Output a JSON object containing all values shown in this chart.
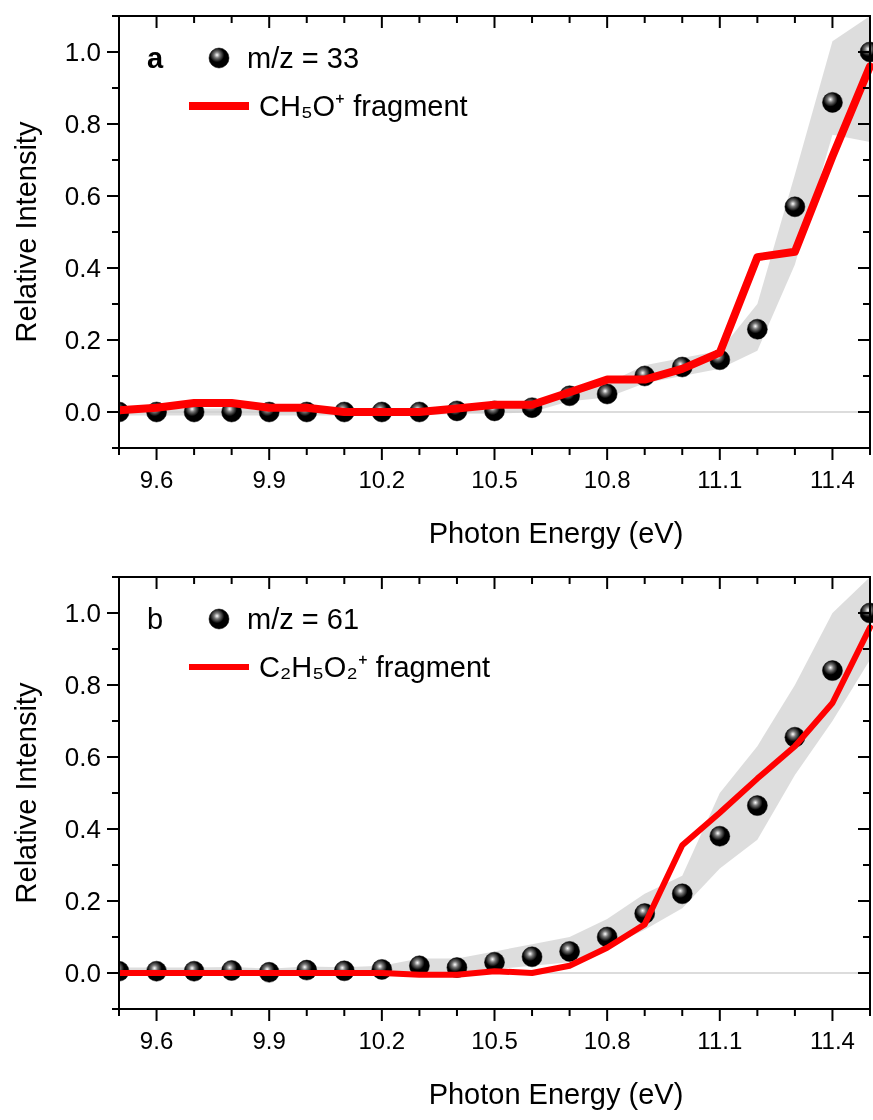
{
  "chart_data": [
    {
      "type": "scatter",
      "annotations": [
        "a"
      ],
      "xlabel": "Photon Energy (eV)",
      "ylabel": "Relative Intensity",
      "xlim": [
        9.5,
        11.5
      ],
      "ylim": [
        -0.1,
        1.1
      ],
      "xticks": [
        {
          "value": 9.5,
          "label": null
        },
        9.6,
        {
          "value": 9.7,
          "label": null
        },
        {
          "value": 9.8,
          "label": null
        },
        9.9,
        {
          "value": 10.0,
          "label": null
        },
        {
          "value": 10.1,
          "label": null
        },
        10.2,
        {
          "value": 10.3,
          "label": null
        },
        {
          "value": 10.4,
          "label": null
        },
        10.5,
        {
          "value": 10.6,
          "label": null
        },
        {
          "value": 10.7,
          "label": null
        },
        10.8,
        {
          "value": 10.9,
          "label": null
        },
        {
          "value": 11.0,
          "label": null
        },
        11.1,
        {
          "value": 11.2,
          "label": null
        },
        {
          "value": 11.3,
          "label": null
        },
        11.4,
        {
          "value": 11.5,
          "label": null
        }
      ],
      "yticks": [
        {
          "value": -0.1,
          "label": null
        },
        {
          "value": 0,
          "label": "0.0"
        },
        {
          "value": 0.1,
          "label": null
        },
        0.2,
        {
          "value": 0.3,
          "label": null
        },
        0.4,
        {
          "value": 0.5,
          "label": null
        },
        0.6,
        {
          "value": 0.7,
          "label": null
        },
        0.8,
        {
          "value": 0.9,
          "label": null
        },
        {
          "value": 1,
          "label": "1.0"
        },
        {
          "value": 1.1,
          "label": null
        }
      ],
      "x": [
        9.5,
        9.6,
        9.7,
        9.8,
        9.9,
        10.0,
        10.1,
        10.2,
        10.3,
        10.4,
        10.5,
        10.6,
        10.7,
        10.8,
        10.9,
        11.0,
        11.1,
        11.2,
        11.3,
        11.4,
        11.5
      ],
      "ref_lines": [
        {
          "axis": "y",
          "value": 0,
          "color": "#d0d0d0"
        }
      ],
      "legend": "top left",
      "series": [
        {
          "name": "m/z = 33",
          "marker": "circle",
          "color": "#000000",
          "values": [
            0.0,
            0.0,
            0.0,
            0.0,
            0.0,
            0.0,
            0.0,
            0.0,
            0.0,
            0.003,
            0.003,
            0.012,
            0.045,
            0.05,
            0.1,
            0.125,
            0.145,
            0.23,
            0.57,
            0.86,
            1.0
          ],
          "lower": [
            -0.01,
            -0.01,
            -0.01,
            -0.01,
            -0.01,
            -0.01,
            -0.01,
            -0.01,
            -0.01,
            -0.005,
            -0.005,
            0.0,
            0.03,
            0.04,
            0.08,
            0.1,
            0.12,
            0.17,
            0.41,
            0.77,
            0.75
          ],
          "upper": [
            0.01,
            0.01,
            0.01,
            0.01,
            0.01,
            0.01,
            0.01,
            0.01,
            0.01,
            0.01,
            0.015,
            0.03,
            0.06,
            0.08,
            0.13,
            0.15,
            0.17,
            0.3,
            0.66,
            1.03,
            1.1
          ]
        },
        {
          "name": "CH₅O⁺ fragment",
          "type": "line",
          "line_style": "solid",
          "color": "#ff0000",
          "values": [
            0.005,
            0.012,
            0.025,
            0.025,
            0.012,
            0.012,
            0.0,
            0.0,
            0.0,
            0.01,
            0.02,
            0.02,
            0.055,
            0.09,
            0.09,
            0.12,
            0.165,
            0.43,
            0.445,
            0.71,
            0.96
          ]
        }
      ]
    },
    {
      "type": "scatter",
      "annotations": [
        "b"
      ],
      "xlabel": "Photon Energy (eV)",
      "ylabel": "Relative Intensity",
      "xlim": [
        9.5,
        11.5
      ],
      "ylim": [
        -0.1,
        1.1
      ],
      "xticks": [
        {
          "value": 9.5,
          "label": null
        },
        9.6,
        {
          "value": 9.7,
          "label": null
        },
        {
          "value": 9.8,
          "label": null
        },
        9.9,
        {
          "value": 10.0,
          "label": null
        },
        {
          "value": 10.1,
          "label": null
        },
        10.2,
        {
          "value": 10.3,
          "label": null
        },
        {
          "value": 10.4,
          "label": null
        },
        10.5,
        {
          "value": 10.6,
          "label": null
        },
        {
          "value": 10.7,
          "label": null
        },
        10.8,
        {
          "value": 10.9,
          "label": null
        },
        {
          "value": 11.0,
          "label": null
        },
        11.1,
        {
          "value": 11.2,
          "label": null
        },
        {
          "value": 11.3,
          "label": null
        },
        11.4,
        {
          "value": 11.5,
          "label": null
        }
      ],
      "yticks": [
        {
          "value": -0.1,
          "label": null
        },
        {
          "value": 0,
          "label": "0.0"
        },
        {
          "value": 0.1,
          "label": null
        },
        0.2,
        {
          "value": 0.3,
          "label": null
        },
        0.4,
        {
          "value": 0.5,
          "label": null
        },
        0.6,
        {
          "value": 0.7,
          "label": null
        },
        0.8,
        {
          "value": 0.9,
          "label": null
        },
        {
          "value": 1,
          "label": "1.0"
        },
        {
          "value": 1.1,
          "label": null
        }
      ],
      "x": [
        9.5,
        9.6,
        9.7,
        9.8,
        9.9,
        10.0,
        10.1,
        10.2,
        10.3,
        10.4,
        10.5,
        10.6,
        10.7,
        10.8,
        10.9,
        11.0,
        11.1,
        11.2,
        11.3,
        11.4,
        11.5
      ],
      "ref_lines": [
        {
          "axis": "y",
          "value": 0,
          "color": "#d0d0d0"
        }
      ],
      "legend": "top left",
      "series": [
        {
          "name": "m/z = 61",
          "marker": "circle",
          "color": "#000000",
          "values": [
            0.005,
            0.005,
            0.005,
            0.007,
            0.002,
            0.008,
            0.006,
            0.01,
            0.02,
            0.015,
            0.03,
            0.045,
            0.06,
            0.1,
            0.165,
            0.22,
            0.38,
            0.465,
            0.655,
            0.84,
            1.0
          ],
          "lower": [
            -0.005,
            -0.005,
            -0.005,
            -0.003,
            -0.008,
            -0.002,
            -0.004,
            0.0,
            0.0,
            0.0,
            0.01,
            0.02,
            0.03,
            0.07,
            0.12,
            0.18,
            0.29,
            0.37,
            0.55,
            0.7,
            0.87
          ],
          "upper": [
            0.015,
            0.015,
            0.015,
            0.017,
            0.012,
            0.018,
            0.016,
            0.02,
            0.04,
            0.04,
            0.06,
            0.08,
            0.1,
            0.15,
            0.22,
            0.27,
            0.5,
            0.63,
            0.8,
            1.0,
            1.1
          ]
        },
        {
          "name": "C₂H₅O₂⁺ fragment",
          "type": "line",
          "line_style": "solid",
          "color": "#ff0000",
          "values": [
            0.0,
            0.0,
            0.0,
            0.0,
            0.0,
            0.0,
            0.0,
            0.0,
            -0.005,
            -0.005,
            0.005,
            0.0,
            0.02,
            0.07,
            0.135,
            0.355,
            0.445,
            0.54,
            0.63,
            0.75,
            0.96
          ]
        }
      ]
    }
  ]
}
